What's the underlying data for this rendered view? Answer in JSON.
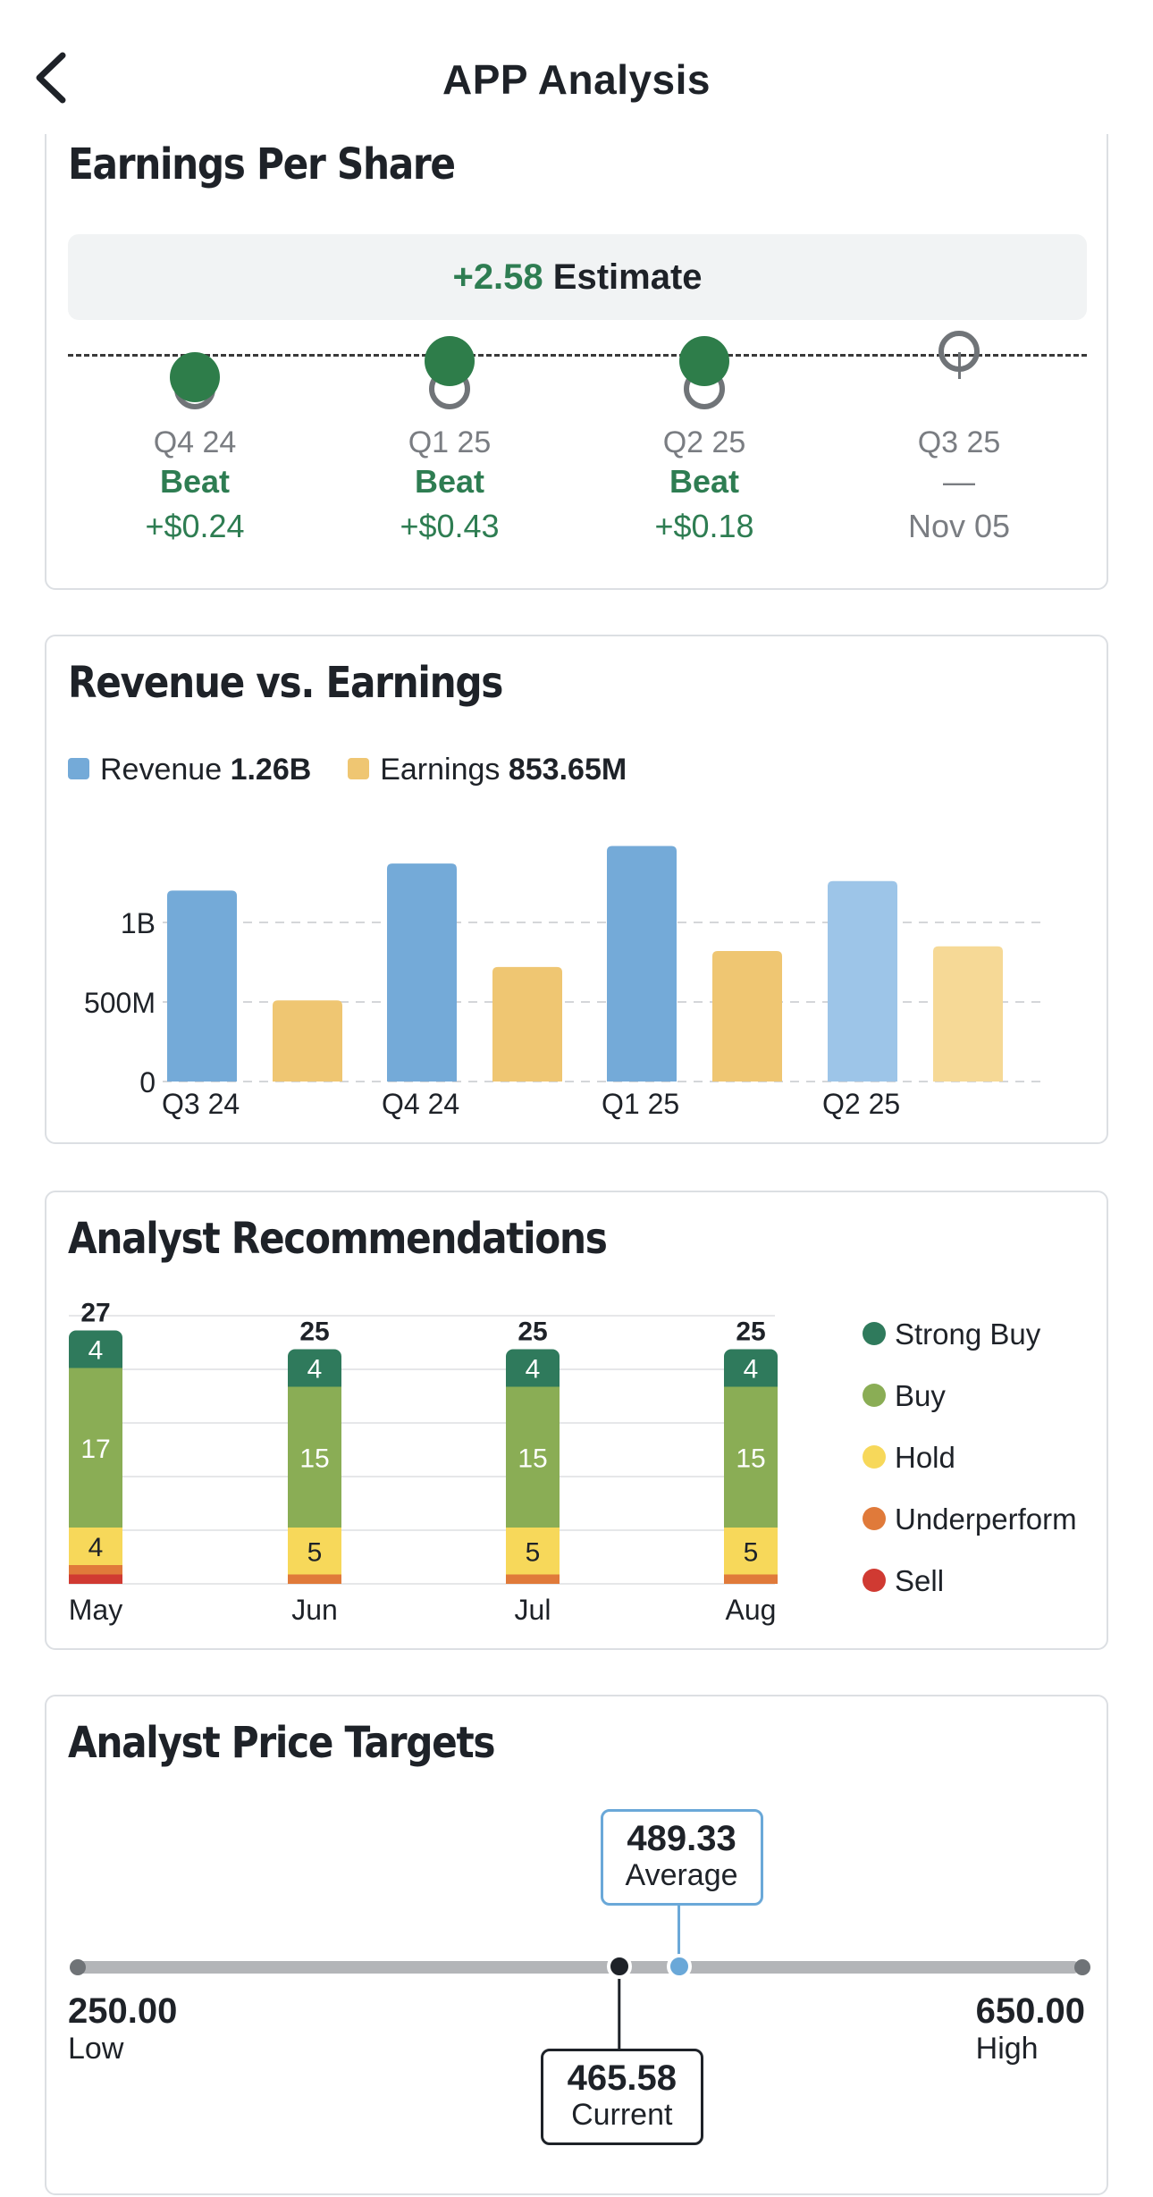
{
  "header": {
    "title": "APP Analysis",
    "back_icon": "chevron-left-icon"
  },
  "eps": {
    "title": "Earnings Per Share",
    "estimate_value": "+2.58",
    "estimate_label": "Estimate",
    "quarters": [
      {
        "label": "Q4 24",
        "result": "Beat",
        "surprise": "+$0.24",
        "reported": true
      },
      {
        "label": "Q1 25",
        "result": "Beat",
        "surprise": "+$0.43",
        "reported": true
      },
      {
        "label": "Q2 25",
        "result": "Beat",
        "surprise": "+$0.18",
        "reported": true
      },
      {
        "label": "Q3 25",
        "result": "—",
        "surprise": "Nov 05",
        "reported": false
      }
    ],
    "colors": {
      "beat": "#2e7d4a",
      "estimate_ring": "#707478"
    }
  },
  "revenue_earnings": {
    "title": "Revenue vs. Earnings",
    "legend": [
      {
        "name": "Revenue",
        "value": "1.26B",
        "color": "#74aad8"
      },
      {
        "name": "Earnings",
        "value": "853.65M",
        "color": "#efc672"
      }
    ]
  },
  "recommendations": {
    "title": "Analyst Recommendations",
    "legend": [
      {
        "name": "Strong Buy",
        "color": "#2f7a5c"
      },
      {
        "name": "Buy",
        "color": "#8aad55"
      },
      {
        "name": "Hold",
        "color": "#f7d85a"
      },
      {
        "name": "Underperform",
        "color": "#e07a3a"
      },
      {
        "name": "Sell",
        "color": "#d03a32"
      }
    ]
  },
  "price_targets": {
    "title": "Analyst Price Targets",
    "low": {
      "value": "250.00",
      "label": "Low"
    },
    "high": {
      "value": "650.00",
      "label": "High"
    },
    "average": {
      "value": "489.33",
      "label": "Average"
    },
    "current": {
      "value": "465.58",
      "label": "Current"
    },
    "range": [
      250,
      650
    ],
    "average_num": 489.33,
    "current_num": 465.58
  },
  "chart_data": [
    {
      "type": "bar",
      "categories": [
        "Q3 24",
        "Q4 24",
        "Q1 25",
        "Q2 25"
      ],
      "series": [
        {
          "name": "Revenue",
          "values": [
            1.2,
            1.37,
            1.48,
            1.26
          ],
          "color": "#74aad8"
        },
        {
          "name": "Earnings",
          "values": [
            0.51,
            0.72,
            0.82,
            0.85
          ],
          "color": "#efc672"
        }
      ],
      "yticks": [
        "0",
        "500M",
        "1B"
      ],
      "ytick_values": [
        0,
        0.5,
        1.0
      ],
      "ylim": [
        0,
        1.5
      ],
      "unit": "billions",
      "highlight_last": true,
      "grid": true
    },
    {
      "type": "bar",
      "stacked": true,
      "categories": [
        "May",
        "Jun",
        "Jul",
        "Aug"
      ],
      "totals": [
        27,
        25,
        25,
        25
      ],
      "series": [
        {
          "name": "Sell",
          "values": [
            1,
            0,
            0,
            0
          ],
          "color": "#d03a32"
        },
        {
          "name": "Underperform",
          "values": [
            1,
            1,
            1,
            1
          ],
          "color": "#e07a3a"
        },
        {
          "name": "Hold",
          "values": [
            4,
            5,
            5,
            5
          ],
          "color": "#f7d85a"
        },
        {
          "name": "Buy",
          "values": [
            17,
            15,
            15,
            15
          ],
          "color": "#8aad55"
        },
        {
          "name": "Strong Buy",
          "values": [
            4,
            4,
            4,
            4
          ],
          "color": "#2f7a5c"
        }
      ],
      "ylim": [
        0,
        27
      ],
      "grid": true
    }
  ]
}
